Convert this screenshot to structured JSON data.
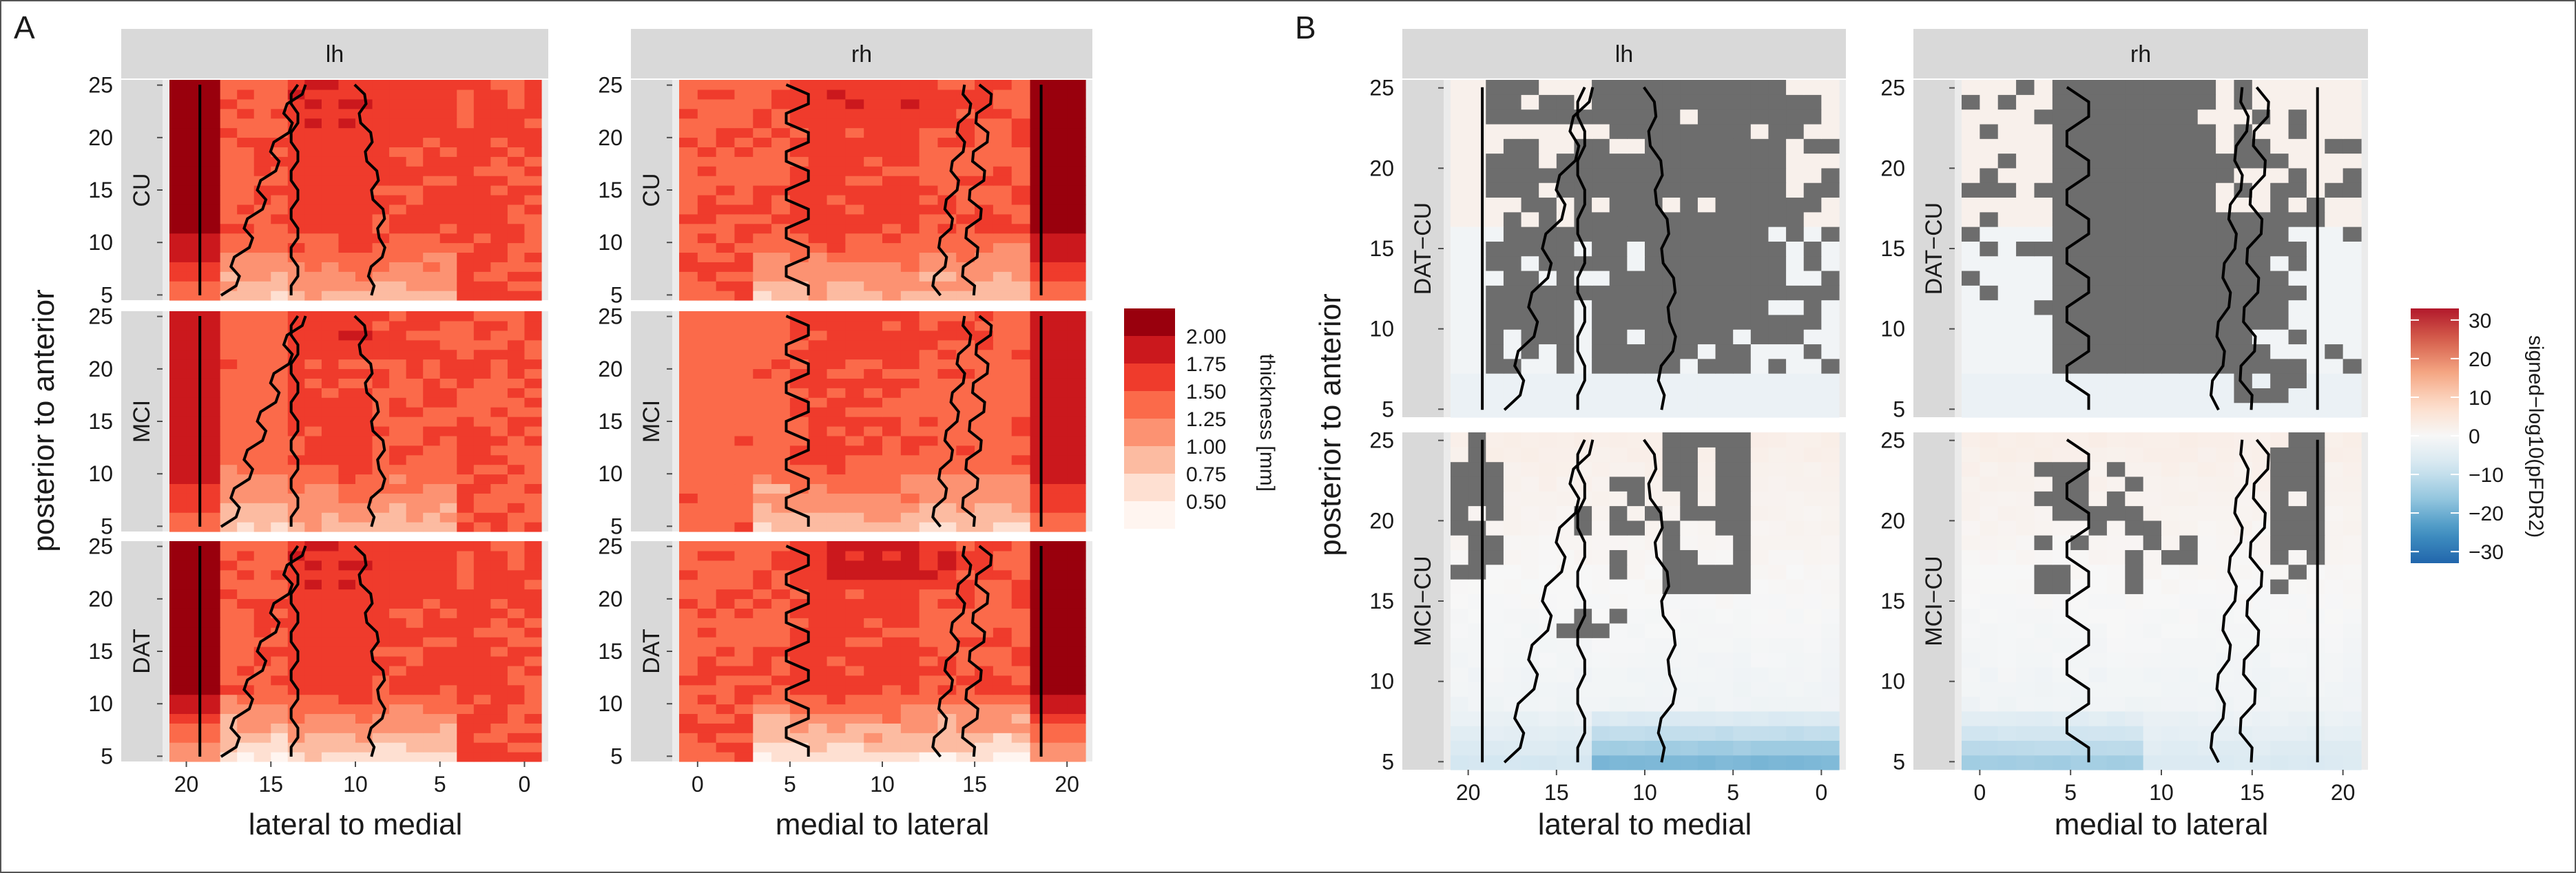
{
  "figure": {
    "panel_letters": [
      "A",
      "B"
    ]
  },
  "chart_data": [
    {
      "type": "heatmap",
      "panel": "A",
      "xlabel_lh": "lateral to medial",
      "xlabel_rh": "medial to lateral",
      "ylabel": "posterior to anterior",
      "x_lh_ticks": [
        "20",
        "15",
        "10",
        "5",
        "0"
      ],
      "x_rh_ticks": [
        "0",
        "5",
        "10",
        "15",
        "20"
      ],
      "y_ticks": [
        "5",
        "10",
        "15",
        "20",
        "25"
      ],
      "xlim": [
        0,
        20
      ],
      "ylim": [
        5,
        25
      ],
      "columns": [
        "lh",
        "rh"
      ],
      "rows": [
        "CU",
        "MCI",
        "DAT"
      ],
      "legend": {
        "title": "thickness [mm]",
        "breaks": [
          "2.00",
          "1.75",
          "1.50",
          "1.25",
          "1.00",
          "0.75",
          "0.50"
        ],
        "colors": [
          "#99000d",
          "#cb181d",
          "#ef3b2c",
          "#fb6a4a",
          "#fc9272",
          "#fcbba1",
          "#fee0d2",
          "#fff5f0"
        ]
      }
    },
    {
      "type": "heatmap",
      "panel": "B",
      "xlabel_lh": "lateral to medial",
      "xlabel_rh": "medial to lateral",
      "ylabel": "posterior to anterior",
      "x_lh_ticks": [
        "20",
        "15",
        "10",
        "5",
        "0"
      ],
      "x_rh_ticks": [
        "0",
        "5",
        "10",
        "15",
        "20"
      ],
      "y_ticks": [
        "5",
        "10",
        "15",
        "20",
        "25"
      ],
      "xlim": [
        0,
        20
      ],
      "ylim": [
        5,
        25
      ],
      "columns": [
        "lh",
        "rh"
      ],
      "rows": [
        "DAT−CU",
        "MCI−CU"
      ],
      "legend": {
        "title": "signed−log10(pFDR2)",
        "breaks": [
          "30",
          "20",
          "10",
          "0",
          "−10",
          "−20",
          "−30"
        ],
        "range": [
          -33,
          33
        ],
        "na_color": "#6d6d6d"
      }
    }
  ]
}
